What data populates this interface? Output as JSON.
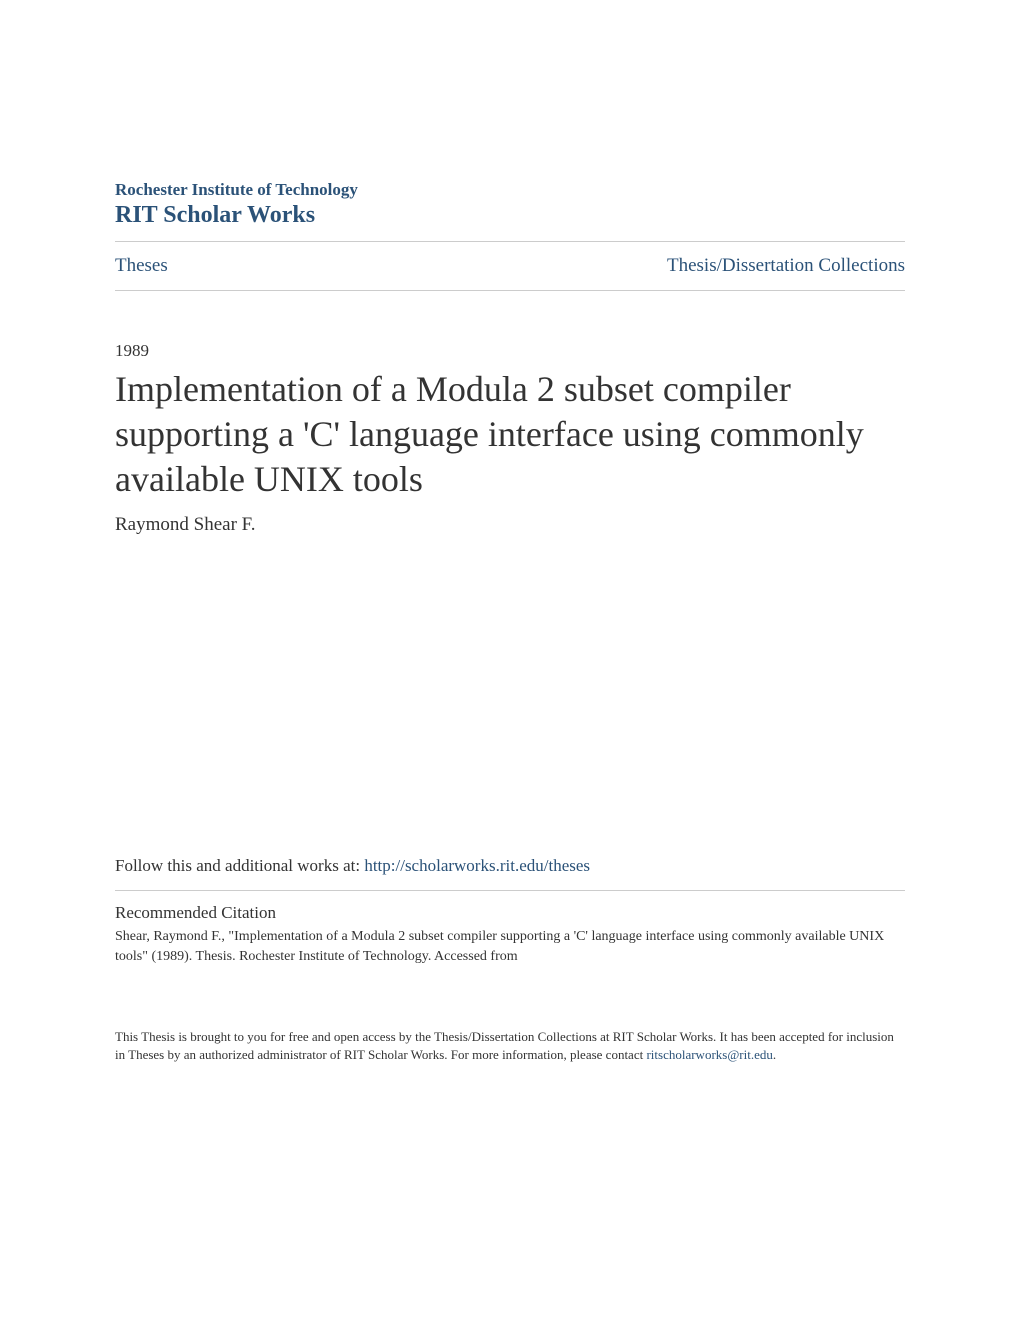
{
  "header": {
    "institution": "Rochester Institute of Technology",
    "scholar_works": "RIT Scholar Works"
  },
  "nav": {
    "left": "Theses",
    "right": "Thesis/Dissertation Collections"
  },
  "content": {
    "year": "1989",
    "title": "Implementation of a Modula 2 subset compiler supporting a 'C' language interface using commonly available UNIX tools",
    "author": "Raymond Shear F."
  },
  "follow": {
    "text": "Follow this and additional works at: ",
    "link": "http://scholarworks.rit.edu/theses"
  },
  "citation": {
    "heading": "Recommended Citation",
    "text": "Shear, Raymond F., \"Implementation of a Modula 2 subset compiler supporting a 'C' language interface using commonly available UNIX tools\" (1989). Thesis. Rochester Institute of Technology. Accessed from"
  },
  "footer": {
    "text_part1": "This Thesis is brought to you for free and open access by the Thesis/Dissertation Collections at RIT Scholar Works. It has been accepted for inclusion in Theses by an authorized administrator of RIT Scholar Works. For more information, please contact ",
    "link": "ritscholarworks@rit.edu",
    "text_part2": "."
  },
  "colors": {
    "link_color": "#2b5278",
    "text_color": "#333333",
    "border_color": "#cccccc",
    "background": "#ffffff"
  }
}
